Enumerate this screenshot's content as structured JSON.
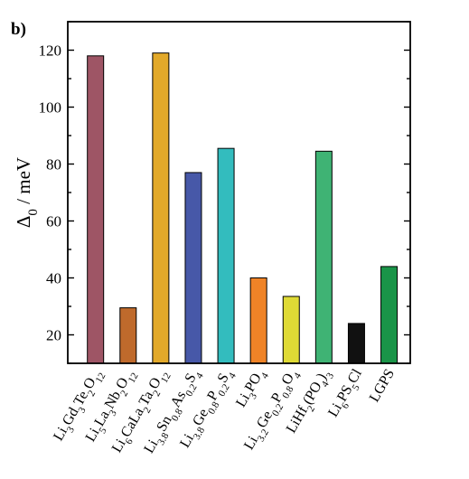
{
  "figure": {
    "panel_label": "b)"
  },
  "chart_data": {
    "type": "bar",
    "ylabel": "Δ0 / meV",
    "ylabel_main": "Δ",
    "ylabel_sub": "0",
    "ylabel_unit": " / meV",
    "ylim": [
      10,
      130
    ],
    "yticks": [
      20,
      40,
      60,
      80,
      100,
      120
    ],
    "grid": false,
    "categories": [
      {
        "label": "Li3Gd3Te2O12",
        "parts": [
          [
            "Li",
            ""
          ],
          [
            "3",
            "sub"
          ],
          [
            "Gd",
            ""
          ],
          [
            "3",
            "sub"
          ],
          [
            "Te",
            ""
          ],
          [
            "2",
            "sub"
          ],
          [
            "O",
            ""
          ],
          [
            "12",
            "sub"
          ]
        ]
      },
      {
        "label": "Li5La3Nb2O12",
        "parts": [
          [
            "Li",
            ""
          ],
          [
            "5",
            "sub"
          ],
          [
            "La",
            ""
          ],
          [
            "3",
            "sub"
          ],
          [
            "Nb",
            ""
          ],
          [
            "2",
            "sub"
          ],
          [
            "O",
            ""
          ],
          [
            "12",
            "sub"
          ]
        ]
      },
      {
        "label": "Li6CaLa2Ta2O12",
        "parts": [
          [
            "Li",
            ""
          ],
          [
            "6",
            "sub"
          ],
          [
            "CaLa",
            ""
          ],
          [
            "2",
            "sub"
          ],
          [
            "Ta",
            ""
          ],
          [
            "2",
            "sub"
          ],
          [
            "O",
            ""
          ],
          [
            "12",
            "sub"
          ]
        ]
      },
      {
        "label": "Li3.8Sn0.8As0.2S4",
        "parts": [
          [
            "Li",
            ""
          ],
          [
            "3.8",
            "sub"
          ],
          [
            "Sn",
            ""
          ],
          [
            "0.8",
            "sub"
          ],
          [
            "As",
            ""
          ],
          [
            "0.2",
            "sub"
          ],
          [
            "S",
            ""
          ],
          [
            "4",
            "sub"
          ]
        ]
      },
      {
        "label": "Li3.8Ge0.8P0.2S4",
        "parts": [
          [
            "Li",
            ""
          ],
          [
            "3.8",
            "sub"
          ],
          [
            "Ge",
            ""
          ],
          [
            "0.8",
            "sub"
          ],
          [
            "P",
            ""
          ],
          [
            "0.2",
            "sub"
          ],
          [
            "S",
            ""
          ],
          [
            "4",
            "sub"
          ]
        ]
      },
      {
        "label": "Li3PO4",
        "parts": [
          [
            "Li",
            ""
          ],
          [
            "3",
            "sub"
          ],
          [
            "PO",
            ""
          ],
          [
            "4",
            "sub"
          ]
        ]
      },
      {
        "label": "Li3.2Ge0.2P0.8O4",
        "parts": [
          [
            "Li",
            ""
          ],
          [
            "3.2",
            "sub"
          ],
          [
            "Ge",
            ""
          ],
          [
            "0.2",
            "sub"
          ],
          [
            "P",
            ""
          ],
          [
            "0.8",
            "sub"
          ],
          [
            "O",
            ""
          ],
          [
            "4",
            "sub"
          ]
        ]
      },
      {
        "label": "LiHf2(PO4)3",
        "parts": [
          [
            "LiHf",
            ""
          ],
          [
            "2",
            "sub"
          ],
          [
            "(PO",
            ""
          ],
          [
            "4",
            "sub"
          ],
          [
            ")",
            ""
          ],
          [
            "3",
            "sub"
          ]
        ]
      },
      {
        "label": "Li6PS5Cl",
        "parts": [
          [
            "Li",
            ""
          ],
          [
            "6",
            "sub"
          ],
          [
            "PS",
            ""
          ],
          [
            "5",
            "sub"
          ],
          [
            "Cl",
            ""
          ]
        ]
      },
      {
        "label": "LGPS",
        "parts": [
          [
            "LGPS",
            ""
          ]
        ]
      }
    ],
    "values": [
      118,
      29.5,
      119,
      77,
      85.5,
      40,
      33.5,
      84.5,
      24,
      44
    ],
    "colors": [
      "#9e5565",
      "#bf6a2c",
      "#e2a92a",
      "#4758a8",
      "#33bcbe",
      "#ef8327",
      "#dfda35",
      "#3fb374",
      "#111111",
      "#1a9448"
    ]
  }
}
